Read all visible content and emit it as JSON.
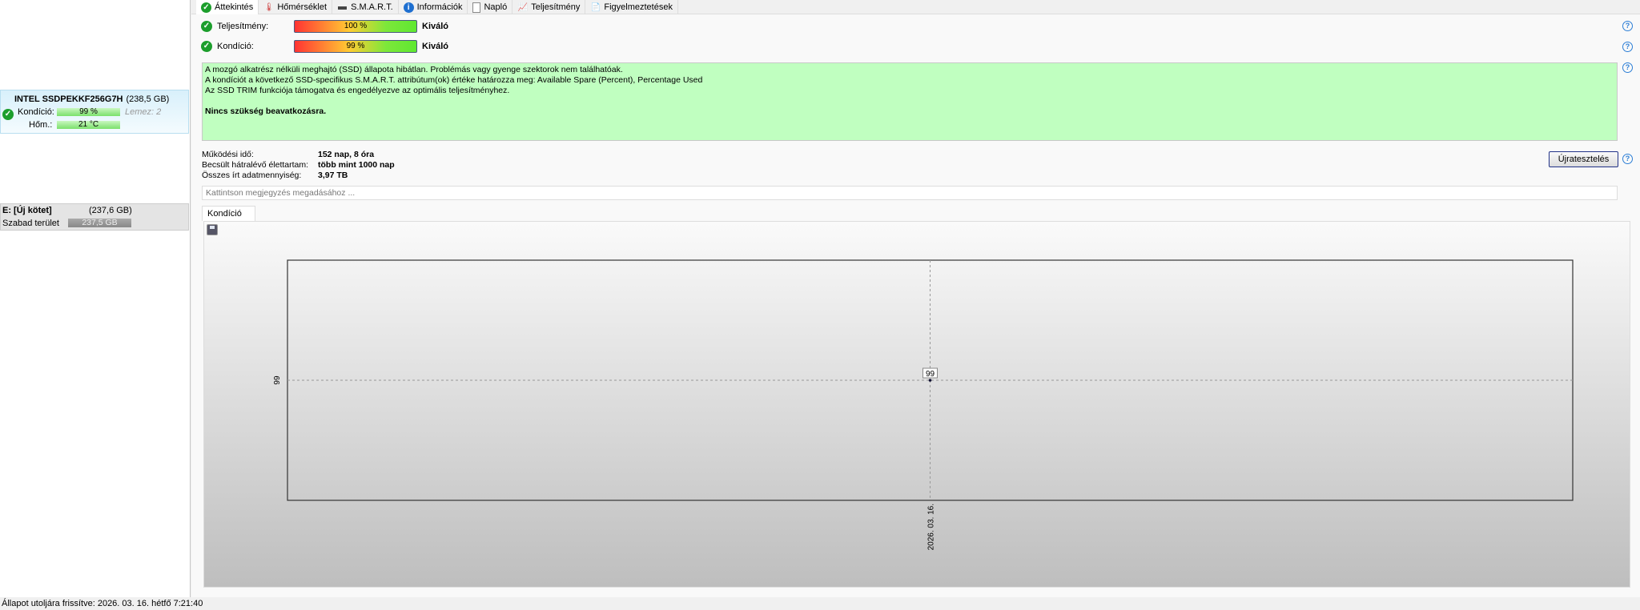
{
  "tabs": [
    {
      "label": "Áttekintés",
      "icon": "check-icon",
      "active": true
    },
    {
      "label": "Hőmérséklet",
      "icon": "thermometer-icon"
    },
    {
      "label": "S.M.A.R.T.",
      "icon": "drive-icon"
    },
    {
      "label": "Információk",
      "icon": "info-icon"
    },
    {
      "label": "Napló",
      "icon": "document-icon"
    },
    {
      "label": "Teljesítmény",
      "icon": "performance-chart-icon"
    },
    {
      "label": "Figyelmeztetések",
      "icon": "alerts-icon"
    }
  ],
  "sidebar": {
    "disk": {
      "name": "INTEL SSDPEKKF256G7H",
      "size": "(238,5 GB)",
      "condition_label": "Kondíció:",
      "condition_value": "99 %",
      "condition_percent": 99,
      "disk_label": "Lemez: 2",
      "temp_label": "Hőm.:",
      "temp_value": "21 °C"
    },
    "volume": {
      "name": "E: [Új kötet]",
      "size": "(237,6 GB)",
      "free_label": "Szabad terület",
      "free_value": "237,5 GB"
    }
  },
  "summary": {
    "performance": {
      "label": "Teljesítmény:",
      "value": "100 %",
      "percent": 100,
      "rating": "Kiváló"
    },
    "condition": {
      "label": "Kondíció:",
      "value": "99 %",
      "percent": 99,
      "rating": "Kiváló"
    }
  },
  "message": {
    "lines": [
      "A mozgó alkatrész nélküli meghajtó (SSD) állapota hibátlan. Problémás vagy gyenge szektorok nem találhatóak.",
      "A kondíciót a következő SSD-specifikus S.M.A.R.T. attribútum(ok) értéke határozza meg:  Available Spare (Percent), Percentage Used",
      "Az SSD TRIM funkciója támogatva és engedélyezve az optimális teljesítményhez."
    ],
    "conclusion": "Nincs szükség beavatkozásra.",
    "background": "#c0ffc0"
  },
  "info": [
    {
      "label": "Működési idő:",
      "value": "152 nap, 8 óra"
    },
    {
      "label": "Becsült hátralévő élettartam:",
      "value": "több mint 1000 nap"
    },
    {
      "label": "Összes írt adatmennyiség:",
      "value": "3,97 TB"
    }
  ],
  "retest_label": "Újratesztelés",
  "note_placeholder": "Kattintson megjegyzés megadásához ...",
  "chart_tab": "Kondíció  (%)",
  "chart_data": {
    "type": "line",
    "x": [
      "2026. 03. 16."
    ],
    "values": [
      99
    ],
    "ytick_labels": [
      "99"
    ],
    "data_labels": [
      "99"
    ],
    "grid": true
  },
  "status": "Állapot utoljára frissítve: 2026. 03. 16. hétfő 7:21:40"
}
